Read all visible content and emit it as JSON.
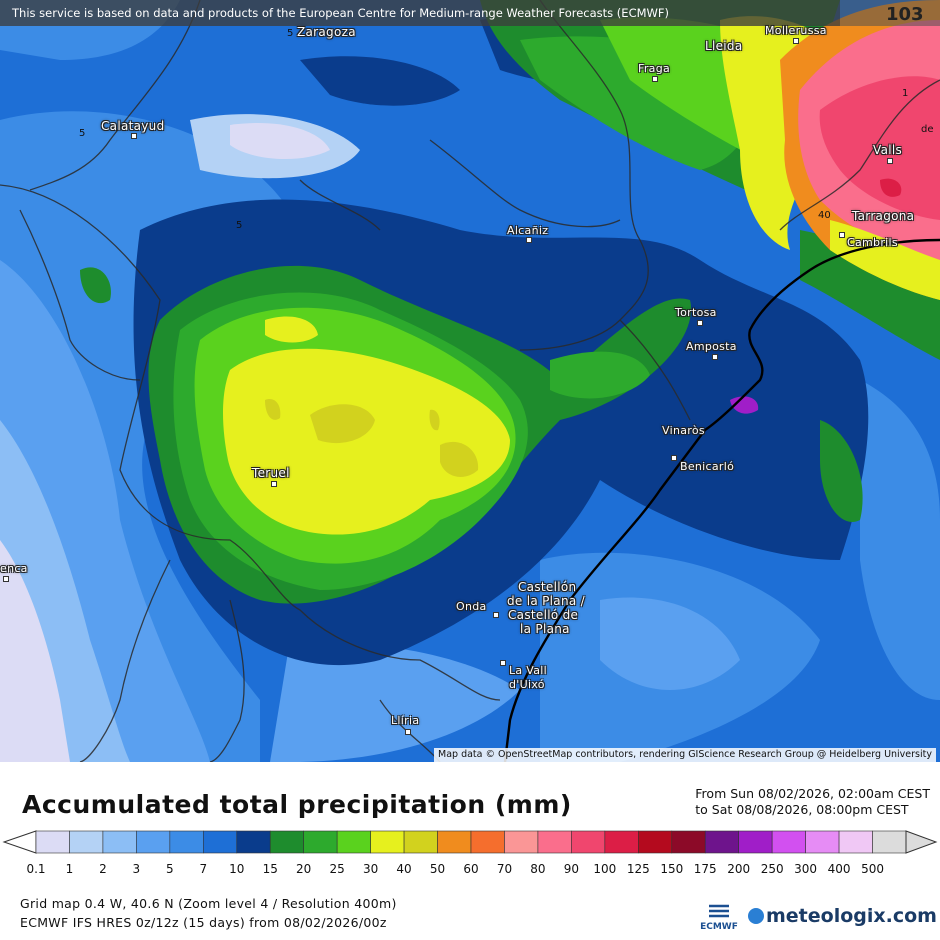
{
  "banner": {
    "text": "This service is based on data and products of the European Centre for Medium-range Weather Forecasts (ECMWF)",
    "badge": "103"
  },
  "attribution": "Map data © OpenStreetMap contributors, rendering GIScience Research Group @ Heidelberg University",
  "cities": [
    {
      "name": "Zaragoza",
      "id": "zaragoza"
    },
    {
      "name": "Lleida",
      "id": "lleida"
    },
    {
      "name": "Mollerussa",
      "id": "mollerussa"
    },
    {
      "name": "Fraga",
      "id": "fraga"
    },
    {
      "name": "Calatayud",
      "id": "calatayud"
    },
    {
      "name": "Valls",
      "id": "valls"
    },
    {
      "name": "Tarragona",
      "id": "tarragona"
    },
    {
      "name": "Cambrils",
      "id": "cambrils"
    },
    {
      "name": "Alcañiz",
      "id": "alcaniz"
    },
    {
      "name": "Tortosa",
      "id": "tortosa"
    },
    {
      "name": "Amposta",
      "id": "amposta"
    },
    {
      "name": "Vinaròs",
      "id": "vinaros"
    },
    {
      "name": "Benicarló",
      "id": "benicarlo"
    },
    {
      "name": "Teruel",
      "id": "teruel"
    },
    {
      "name": "enca",
      "id": "cuenca-partial"
    },
    {
      "name": "Castellón",
      "id": "castellon-1"
    },
    {
      "name": "de la Plana /",
      "id": "castellon-2"
    },
    {
      "name": "Castelló de",
      "id": "castellon-3"
    },
    {
      "name": "la Plana",
      "id": "castellon-4"
    },
    {
      "name": "Onda",
      "id": "onda"
    },
    {
      "name": "La Vall",
      "id": "lavall-1"
    },
    {
      "name": "d'Uixó",
      "id": "lavall-2"
    },
    {
      "name": "Llíria",
      "id": "lliria"
    }
  ],
  "isolines": [
    "5",
    "5",
    "5",
    "40",
    "1",
    "de"
  ],
  "legend": {
    "title": "Accumulated total precipitation (mm)",
    "period_from": "From Sun 08/02/2026, 02:00am CEST",
    "period_to": "to Sat 08/08/2026, 08:00pm CEST",
    "ticks": [
      "0.1",
      "1",
      "2",
      "3",
      "5",
      "7",
      "10",
      "15",
      "20",
      "25",
      "30",
      "40",
      "50",
      "60",
      "70",
      "80",
      "90",
      "100",
      "125",
      "150",
      "175",
      "200",
      "250",
      "300",
      "400",
      "500"
    ],
    "colors": [
      "#dcdcf5",
      "#b4d2f5",
      "#8cbef5",
      "#5aa0f0",
      "#3c8ce6",
      "#1e6fd6",
      "#0a3c8c",
      "#1e8c2d",
      "#2daa2d",
      "#5ad21e",
      "#e6f01e",
      "#d2d21e",
      "#f08c1e",
      "#f56e2d",
      "#fa9696",
      "#fa6e8c",
      "#f0466e",
      "#dc1e46",
      "#b40a1e",
      "#8c0a28",
      "#6e148c",
      "#a01ec8",
      "#d250f0",
      "#e68cf5",
      "#f0c8f5",
      "#dcdcdc"
    ]
  },
  "footer": {
    "grid": "Grid map 0.4 W, 40.6 N (Zoom level 4 / Resolution 400m)",
    "model": "ECMWF IFS HRES 0z/12z (15 days) from 08/02/2026/00z",
    "ecmwf_logo": "ECMWF",
    "brand": "meteologix.com"
  }
}
